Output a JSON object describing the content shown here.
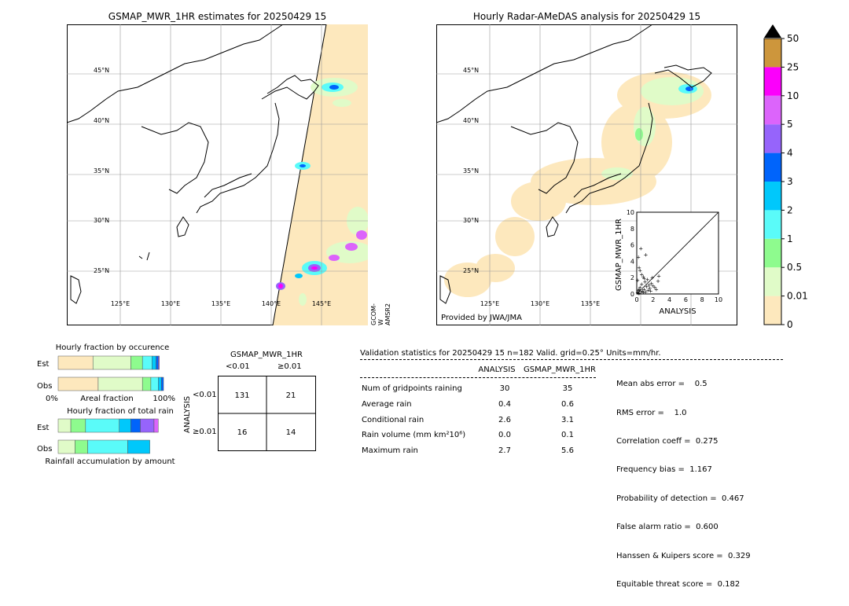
{
  "left_map": {
    "title": "GSMAP_MWR_1HR estimates for 20250429 15",
    "sensor_label": "GCOM-W AMSR2",
    "lat_labels": [
      "45°N",
      "40°N",
      "35°N",
      "30°N",
      "25°N"
    ],
    "lon_labels": [
      "125°E",
      "130°E",
      "135°E",
      "140°E",
      "145°E"
    ]
  },
  "right_map": {
    "title": "Hourly Radar-AMeDAS analysis for 20250429 15",
    "provided_by": "Provided by JWA/JMA",
    "lat_labels": [
      "45°N",
      "40°N",
      "35°N",
      "30°N",
      "25°N"
    ],
    "lon_labels": [
      "125°E",
      "130°E",
      "135°E"
    ]
  },
  "colorbar": {
    "ticks": [
      "0",
      "0.01",
      "0.5",
      "1",
      "2",
      "3",
      "4",
      "5",
      "10",
      "25",
      "50"
    ],
    "colors": [
      "#fde8bd",
      "#e0fbc8",
      "#8efb8e",
      "#5afbf9",
      "#00c8fb",
      "#0064fb",
      "#9664fb",
      "#dc64fb",
      "#fb00fb",
      "#cd963c"
    ]
  },
  "chart_data": [
    {
      "type": "scatter",
      "xlabel": "ANALYSIS",
      "ylabel": "GSMAP_MWR_1HR",
      "xlim": [
        0,
        10
      ],
      "ylim": [
        0,
        10
      ],
      "x_ticks": [
        "0",
        "2",
        "4",
        "6",
        "8",
        "10"
      ],
      "y_ticks": [
        "0",
        "2",
        "4",
        "6",
        "8",
        "10"
      ],
      "points": [
        [
          0.1,
          0.2
        ],
        [
          0.2,
          0.5
        ],
        [
          0.3,
          0.1
        ],
        [
          0.4,
          0.8
        ],
        [
          0.5,
          0.3
        ],
        [
          0.6,
          1.2
        ],
        [
          0.7,
          0.4
        ],
        [
          0.8,
          2.1
        ],
        [
          0.9,
          0.6
        ],
        [
          1.0,
          1.5
        ],
        [
          1.1,
          0.3
        ],
        [
          1.2,
          0.9
        ],
        [
          1.3,
          1.8
        ],
        [
          1.4,
          0.5
        ],
        [
          1.5,
          1.1
        ],
        [
          1.6,
          0.7
        ],
        [
          1.8,
          1.3
        ],
        [
          2.0,
          1.0
        ],
        [
          2.2,
          0.8
        ],
        [
          2.6,
          1.6
        ],
        [
          0.2,
          4.5
        ],
        [
          0.5,
          5.6
        ],
        [
          1.1,
          4.8
        ],
        [
          0.3,
          3.2
        ],
        [
          0.6,
          2.4
        ],
        [
          0.4,
          2.9
        ],
        [
          0.1,
          1.7
        ],
        [
          0.8,
          0.2
        ],
        [
          1.7,
          0.4
        ],
        [
          2.4,
          0.6
        ],
        [
          0.2,
          0.1
        ],
        [
          0.3,
          0.6
        ],
        [
          0.9,
          1.9
        ],
        [
          1.9,
          2.0
        ],
        [
          2.7,
          2.2
        ]
      ]
    },
    {
      "type": "bar",
      "title": "Hourly fraction by occurence",
      "rows": [
        "Est",
        "Obs"
      ],
      "xlabel": "Areal fraction",
      "x_min_label": "0%",
      "x_max_label": "100%",
      "series": [
        {
          "row": "Est",
          "fractions": [
            0.33,
            0.36,
            0.11,
            0.09,
            0.04,
            0.02,
            0.01
          ],
          "colors": [
            "#fde8bd",
            "#e0fbc8",
            "#8efb8e",
            "#5afbf9",
            "#00c8fb",
            "#0064fb",
            "#9664fb"
          ]
        },
        {
          "row": "Obs",
          "fractions": [
            0.38,
            0.42,
            0.08,
            0.07,
            0.03,
            0.02
          ],
          "colors": [
            "#fde8bd",
            "#e0fbc8",
            "#8efb8e",
            "#5afbf9",
            "#00c8fb",
            "#0064fb"
          ]
        }
      ]
    },
    {
      "type": "bar",
      "title": "Hourly fraction of total rain",
      "rows": [
        "Est",
        "Obs"
      ],
      "xlabel": "Rainfall accumulation by amount",
      "series": [
        {
          "row": "Est",
          "fractions": [
            0.12,
            0.14,
            0.32,
            0.11,
            0.09,
            0.13,
            0.04
          ],
          "colors": [
            "#e0fbc8",
            "#8efb8e",
            "#5afbf9",
            "#00c8fb",
            "#0064fb",
            "#9664fb",
            "#dc64fb"
          ]
        },
        {
          "row": "Obs",
          "fractions": [
            0.16,
            0.12,
            0.38,
            0.21
          ],
          "colors": [
            "#e0fbc8",
            "#8efb8e",
            "#5afbf9",
            "#00c8fb"
          ]
        }
      ]
    }
  ],
  "contingency": {
    "title": "GSMAP_MWR_1HR",
    "col_headers": [
      "<0.01",
      "≥0.01"
    ],
    "row_label": "ANALYSIS",
    "row_headers": [
      "<0.01",
      "≥0.01"
    ],
    "cells": [
      [
        "131",
        "21"
      ],
      [
        "16",
        "14"
      ]
    ]
  },
  "validation": {
    "header": "Validation statistics for 20250429 15  n=182 Valid. grid=0.25° Units=mm/hr.",
    "col_analysis": "ANALYSIS",
    "col_gsmap": "GSMAP_MWR_1HR",
    "rows": [
      {
        "label": "Num of gridpoints raining",
        "analysis": "30",
        "gsmap": "35"
      },
      {
        "label": "Average rain",
        "analysis": "0.4",
        "gsmap": "0.6"
      },
      {
        "label": "Conditional rain",
        "analysis": "2.6",
        "gsmap": "3.1"
      },
      {
        "label": "Rain volume (mm km²10⁶)",
        "analysis": "0.0",
        "gsmap": "0.1"
      },
      {
        "label": "Maximum rain",
        "analysis": "2.7",
        "gsmap": "5.6"
      }
    ],
    "scores": [
      "Mean abs error =    0.5",
      "RMS error =    1.0",
      "Correlation coeff =  0.275",
      "Frequency bias =  1.167",
      "Probability of detection =  0.467",
      "False alarm ratio =  0.600",
      "Hanssen & Kuipers score =  0.329",
      "Equitable threat score =  0.182"
    ]
  }
}
